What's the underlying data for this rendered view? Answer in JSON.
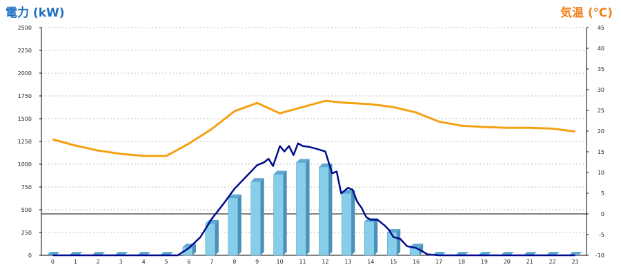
{
  "chart_data": {
    "type": "bar",
    "left_axis_label": "電力 (kW)",
    "right_axis_label": "気温 (℃)",
    "colors": {
      "bar": "#87ceeb",
      "bar_side": "#4a90b8",
      "bar_top": "#5fa8d3",
      "power_line": "#000a8c",
      "temperature_line": "#f5a012",
      "grid": "#bbbbbb"
    },
    "categories": [
      "0",
      "1",
      "2",
      "3",
      "4",
      "5",
      "6",
      "7",
      "8",
      "9",
      "10",
      "11",
      "12",
      "13",
      "14",
      "15",
      "16",
      "17",
      "18",
      "19",
      "20",
      "21",
      "22",
      "23"
    ],
    "left_yticks": [
      "0",
      "250",
      "500",
      "750",
      "1000",
      "1250",
      "1500",
      "1750",
      "2000",
      "2250",
      "2500"
    ],
    "right_yticks": [
      "-10",
      "-5",
      "0",
      "5",
      "10",
      "15",
      "20",
      "25",
      "30",
      "35",
      "40",
      "45"
    ],
    "ylim_left": [
      0,
      2500
    ],
    "ylim_right": [
      -10,
      45
    ],
    "grid": true,
    "series": [
      {
        "kind": "bar",
        "axis": "left",
        "values": [
          0,
          0,
          0,
          0,
          0,
          0,
          90,
          350,
          630,
          810,
          890,
          1020,
          970,
          680,
          370,
          250,
          90,
          0,
          0,
          0,
          0,
          0,
          0,
          0
        ]
      },
      {
        "kind": "line",
        "axis": "left",
        "x": [
          0,
          5.5,
          6,
          6.5,
          7,
          7.5,
          8,
          8.5,
          9,
          9.3,
          9.5,
          9.7,
          10,
          10.2,
          10.4,
          10.6,
          10.8,
          11,
          11.3,
          11.6,
          12,
          12.3,
          12.5,
          12.7,
          13,
          13.2,
          13.4,
          13.6,
          13.8,
          14,
          14.3,
          14.6,
          14.8,
          15,
          15.3,
          15.6,
          16,
          16.3,
          16.5,
          17,
          23
        ],
        "values": [
          0,
          0,
          80,
          200,
          400,
          560,
          730,
          860,
          990,
          1020,
          1060,
          980,
          1200,
          1140,
          1200,
          1100,
          1230,
          1200,
          1190,
          1170,
          1140,
          900,
          920,
          680,
          740,
          720,
          590,
          520,
          420,
          390,
          390,
          330,
          280,
          200,
          180,
          100,
          80,
          40,
          10,
          0,
          0
        ]
      },
      {
        "kind": "line",
        "axis": "right",
        "values": [
          18,
          16.5,
          15.3,
          14.5,
          14,
          14,
          17,
          20.5,
          24.8,
          26.8,
          24.3,
          25.8,
          27.3,
          26.8,
          26.5,
          25.8,
          24.5,
          22.3,
          21.3,
          21,
          20.8,
          20.8,
          20.6,
          19.9
        ]
      }
    ]
  }
}
